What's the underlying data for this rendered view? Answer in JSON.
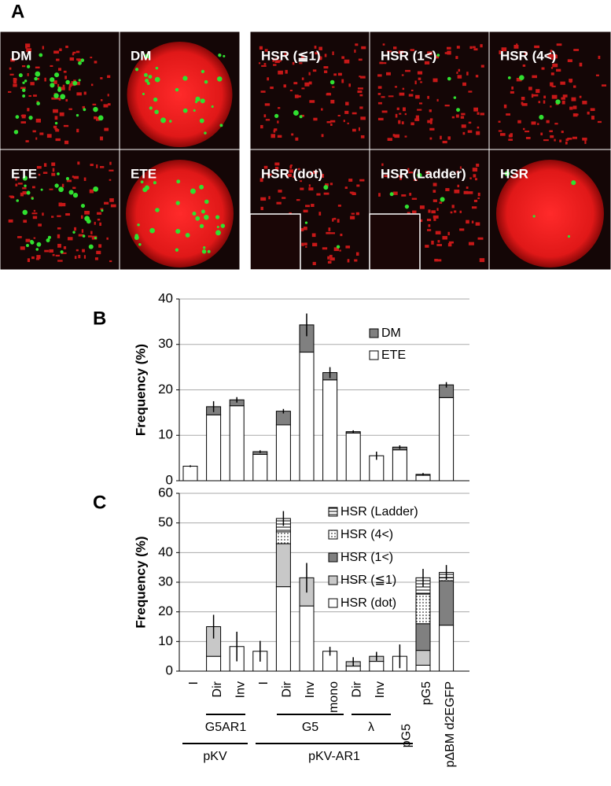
{
  "panel_a": {
    "label": "A",
    "tiles": [
      "DM",
      "DM",
      "ETE",
      "ETE",
      "HSR (≦1)",
      "HSR (1<)",
      "HSR (4<)",
      "HSR (dot)",
      "HSR (Ladder)",
      "HSR"
    ]
  },
  "chart_data": [
    {
      "type": "bar",
      "panel": "B",
      "stacked": true,
      "ylabel": "Frequency (%)",
      "ylim": [
        0,
        40
      ],
      "yticks": [
        0,
        10,
        20,
        30,
        40
      ],
      "grid": true,
      "series": [
        {
          "name": "DM",
          "color": "#808080",
          "values": [
            0,
            1.8,
            1.3,
            0.6,
            3.0,
            6.0,
            1.6,
            0.3,
            0,
            0.6,
            0.2,
            2.8
          ]
        },
        {
          "name": "ETE",
          "color": "#ffffff",
          "values": [
            3.2,
            14.5,
            16.5,
            5.8,
            12.3,
            28.3,
            22.2,
            10.5,
            5.5,
            6.8,
            1.2,
            18.3
          ]
        }
      ],
      "errors": [
        0.2,
        1.2,
        0.6,
        0.3,
        0.5,
        2.5,
        1.2,
        0.3,
        0.9,
        0.4,
        0.3,
        0.6
      ]
    },
    {
      "type": "bar",
      "panel": "C",
      "stacked": true,
      "ylabel": "Frequency (%)",
      "ylim": [
        0,
        60
      ],
      "yticks": [
        0,
        10,
        20,
        30,
        40,
        50,
        60
      ],
      "grid": true,
      "categories": [
        "I",
        "Dir",
        "Inv",
        "I",
        "Dir",
        "Inv",
        "mono",
        "Dir",
        "Inv",
        "pG5",
        "pG5",
        "pΔBM d2EGFP"
      ],
      "groups": [
        "G5AR1",
        "pKV",
        "G5",
        "λ",
        "pKV-AR1"
      ],
      "series": [
        {
          "name": "HSR (Ladder)",
          "color": "#ffffff",
          "pattern": "hlines",
          "values": [
            0,
            0,
            0,
            0,
            4.5,
            0,
            0,
            0,
            0,
            0,
            5.5,
            1.8
          ]
        },
        {
          "name": "HSR (4<)",
          "color": "#ffffff",
          "pattern": "dots",
          "values": [
            0,
            0,
            0,
            0,
            4,
            0,
            0,
            0,
            0,
            0,
            10,
            1
          ]
        },
        {
          "name": "HSR (1<)",
          "color": "#808080",
          "values": [
            0,
            0,
            0,
            0,
            0,
            0,
            0,
            0,
            0,
            0,
            9,
            15
          ]
        },
        {
          "name": "HSR (≦1)",
          "color": "#c8c8c8",
          "values": [
            0,
            10,
            0,
            0,
            14.5,
            9.5,
            0,
            1.5,
            1.7,
            0,
            5,
            0
          ]
        },
        {
          "name": "HSR (dot)",
          "color": "#ffffff",
          "values": [
            0,
            5,
            8.3,
            6.7,
            28.5,
            22,
            6.7,
            1.7,
            3.3,
            5,
            2,
            15.5
          ]
        }
      ],
      "errors": [
        0,
        4,
        5,
        3.5,
        2.5,
        5,
        1.5,
        1.5,
        1.5,
        4,
        3,
        2.5
      ]
    }
  ]
}
